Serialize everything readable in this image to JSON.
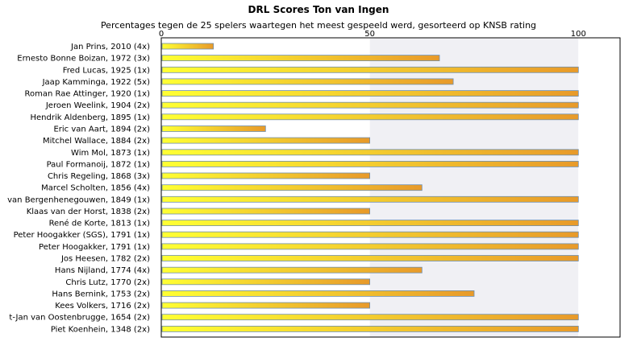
{
  "chart_data": {
    "type": "bar",
    "orientation": "horizontal",
    "title": "DRL Scores Ton van Ingen",
    "subtitle": "Percentages tegen de 25 spelers waartegen het meest gespeeld werd, gesorteerd op KNSB rating",
    "xlim": [
      0,
      110
    ],
    "x_ticks": [
      0,
      50,
      100
    ],
    "categories": [
      "Jan Prins, 2010 (4x)",
      "Ernesto Bonne Boizan, 1972 (3x)",
      "Fred Lucas, 1925 (1x)",
      "Jaap Kamminga, 1922 (5x)",
      "Roman Rae Attinger, 1920 (1x)",
      "Jeroen Weelink, 1904 (2x)",
      "Hendrik Aldenberg, 1895 (1x)",
      "Eric van Aart, 1894 (2x)",
      "Mitchel Wallace, 1884 (2x)",
      "Wim Mol, 1873 (1x)",
      "Paul Formanoij, 1872 (1x)",
      "Chris Regeling, 1868 (3x)",
      "Marcel Scholten, 1856 (4x)",
      "van Bergenhenegouwen, 1849 (1x)",
      "Klaas van der Horst, 1838 (2x)",
      "René de Korte, 1813 (1x)",
      "Peter Hoogakker (SGS), 1791 (1x)",
      "Peter Hoogakker, 1791 (1x)",
      "Jos Heesen, 1782 (2x)",
      "Hans Nijland, 1774 (4x)",
      "Chris Lutz, 1770 (2x)",
      "Hans Bernink, 1753 (2x)",
      "Kees Volkers, 1716 (2x)",
      "t-Jan van Oostenbrugge, 1654 (2x)",
      "Piet Koenhein, 1348 (2x)"
    ],
    "values": [
      12.5,
      66.7,
      100,
      70,
      100,
      100,
      100,
      25,
      50,
      100,
      100,
      50,
      62.5,
      100,
      50,
      100,
      100,
      100,
      100,
      62.5,
      50,
      75,
      50,
      100,
      100
    ],
    "grid": true,
    "legend": "none",
    "colors": {
      "bar_left": "#ffff33",
      "bar_right": "#e89a2a",
      "bar_border": "#6f8fae",
      "plot_band_light": "#ffffff",
      "plot_band_dark": "#f0f0f4",
      "axis": "#000000"
    }
  }
}
